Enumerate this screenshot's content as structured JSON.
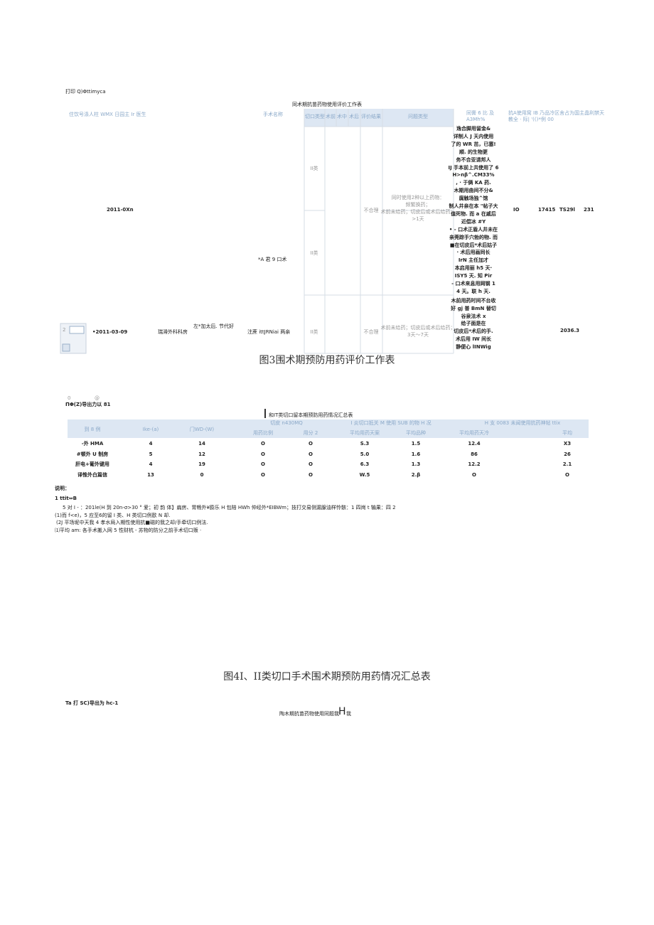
{
  "fig3": {
    "toolbar": "打印 Q)Φttimyca",
    "title": "同术期抗苗药物使用评价工作表",
    "headers": [
      "住饮号涤人柱 WMX 日园主 Ir 医生",
      "手术名称",
      "切口类型",
      "术前",
      "术中",
      "术后",
      "评价结果",
      "问题类型",
      "同膏 6 比 及 A3Mh%",
      "抗A使用窝 IB 乃品冷区舍占为国主晶利禁天 教全 · 际| '(()*例 00"
    ],
    "row1": {
      "date": "2011-0Xn",
      "surgery": "*A 君 9 口术",
      "class_a": "II类",
      "class_b": "II类",
      "result": "不合理",
      "problem": [
        "同时使用2种以上药物：",
        "频繁换药；",
        "术前未给药；切皮后或术后给药；",
        ">1天"
      ],
      "notes": [
        "逸合脚用留金&",
        "详制人 J 天内使用",
        "了的 WR 茁，已塞!",
        "顺. 的生物更",
        "务不合亚请邦人",
        "IJ 手本前上共使用了 6",
        "H>nβ^.CM33%",
        ", · 于俩 KA 药.",
        "木期用曲间不分&",
        "腐触场独^馆",
        "制人井亲在本 \"帖子大",
        "值死物. 而 a 在戚后",
        "近偿冰 #Y",
        "• - 口术正盾人井未在",
        "亲莞踪手穴勃的物. 而",
        "■在切皮后*术后姑子",
        "· 术后用画同长",
        "IrN 主任加才",
        "本启用丽 h5 天·",
        "ISY5 天. 知 Pir",
        "- 口术来息用网钢 1",
        "4 天。联 h 天."
      ],
      "stats": [
        "IO",
        "17415",
        "TS29l",
        "231"
      ]
    },
    "row2": {
      "index": "2",
      "date": "•2011-03-09",
      "dept": "瑞滞外科科房",
      "doctor": "左*加太后. 节代好",
      "surgery": "注蔗 ittJRNiai 两亲",
      "class": "II类",
      "result": "不合理",
      "problem": [
        "术前未给药；切皮后或术后给药；",
        "3天～7天"
      ],
      "notes": [
        "木前用药时间不台收",
        "好 gj 普 BmN 替切",
        "谷泉法术 x",
        "给子面是在",
        "切皮后*术后的手.",
        "术后用 IW 间长",
        "静便心 lINWig"
      ],
      "stat": "2036.3"
    },
    "caption": "图3围术期预防用药评价工作表"
  },
  "fig4": {
    "toolbar": [
      "0",
      "@",
      "ΠΦ(Z)导出力以 81"
    ],
    "title": "和IT类切口留本期预防用药情况汇总表",
    "header_top": [
      "到 8 例",
      "Ike-(a)",
      "门WD-(W)",
      "切皮 n430MQ",
      "I 炎切口抵关 M 使用 SUB 的物 H 况",
      "H 支 0083 未闻使用抗药神帖 ttix"
    ],
    "header_sub": [
      "用药比例",
      "用分 2",
      "平均用药天案",
      "平均品种",
      "平均用药天冷",
      "平均"
    ],
    "rows": [
      [
        "-外 HMA",
        "4",
        "14",
        "O",
        "O",
        "S.3",
        "1.5",
        "12.4",
        "X3"
      ],
      [
        "#顿外 U 制房",
        "5",
        "12",
        "O",
        "O",
        "5.0",
        "1.6",
        "86",
        "26"
      ],
      [
        "肝电+葡外键用",
        "4",
        "19",
        "O",
        "O",
        "6.3",
        "1.3",
        "12.2",
        "2.1"
      ],
      [
        "译惟外白篇信",
        "13",
        "0",
        "O",
        "O",
        "W.5",
        "2.β",
        "O",
        "O"
      ]
    ],
    "notes": [
      "说明：",
      "1      ttit⇔B",
      "5 对 I - ：201le(H 到 20n-σ>30 ° 爱；初 韵 体】扁房、胃畅外¥膨乐 H 包陪 HWh 仲经外*EIBWm；技打交易侧漏腺油样怜骸：1 四崗 t 犏果：四 2",
      "(1)而 f<e)，5 应至6的留 I 类、H 类切口例歐 N 却.",
      "(2J 平场坭中天我 4 孝水局入期性使用抗■磁的我之却/手牵切口例法.",
      "⑴平均 am: 各手术搬入网 5 性财杭 - 苏物的防分之前手术切口贩 ·"
    ],
    "caption": "图4I、II类切口手术围术期预防用药情况汇总表"
  },
  "fig5": {
    "toolbar": "Ta 打 SC)导出为 hc-1",
    "title": "陶木期抗苗药物使用同题我",
    "title_big": "H",
    "title_end": "我"
  }
}
